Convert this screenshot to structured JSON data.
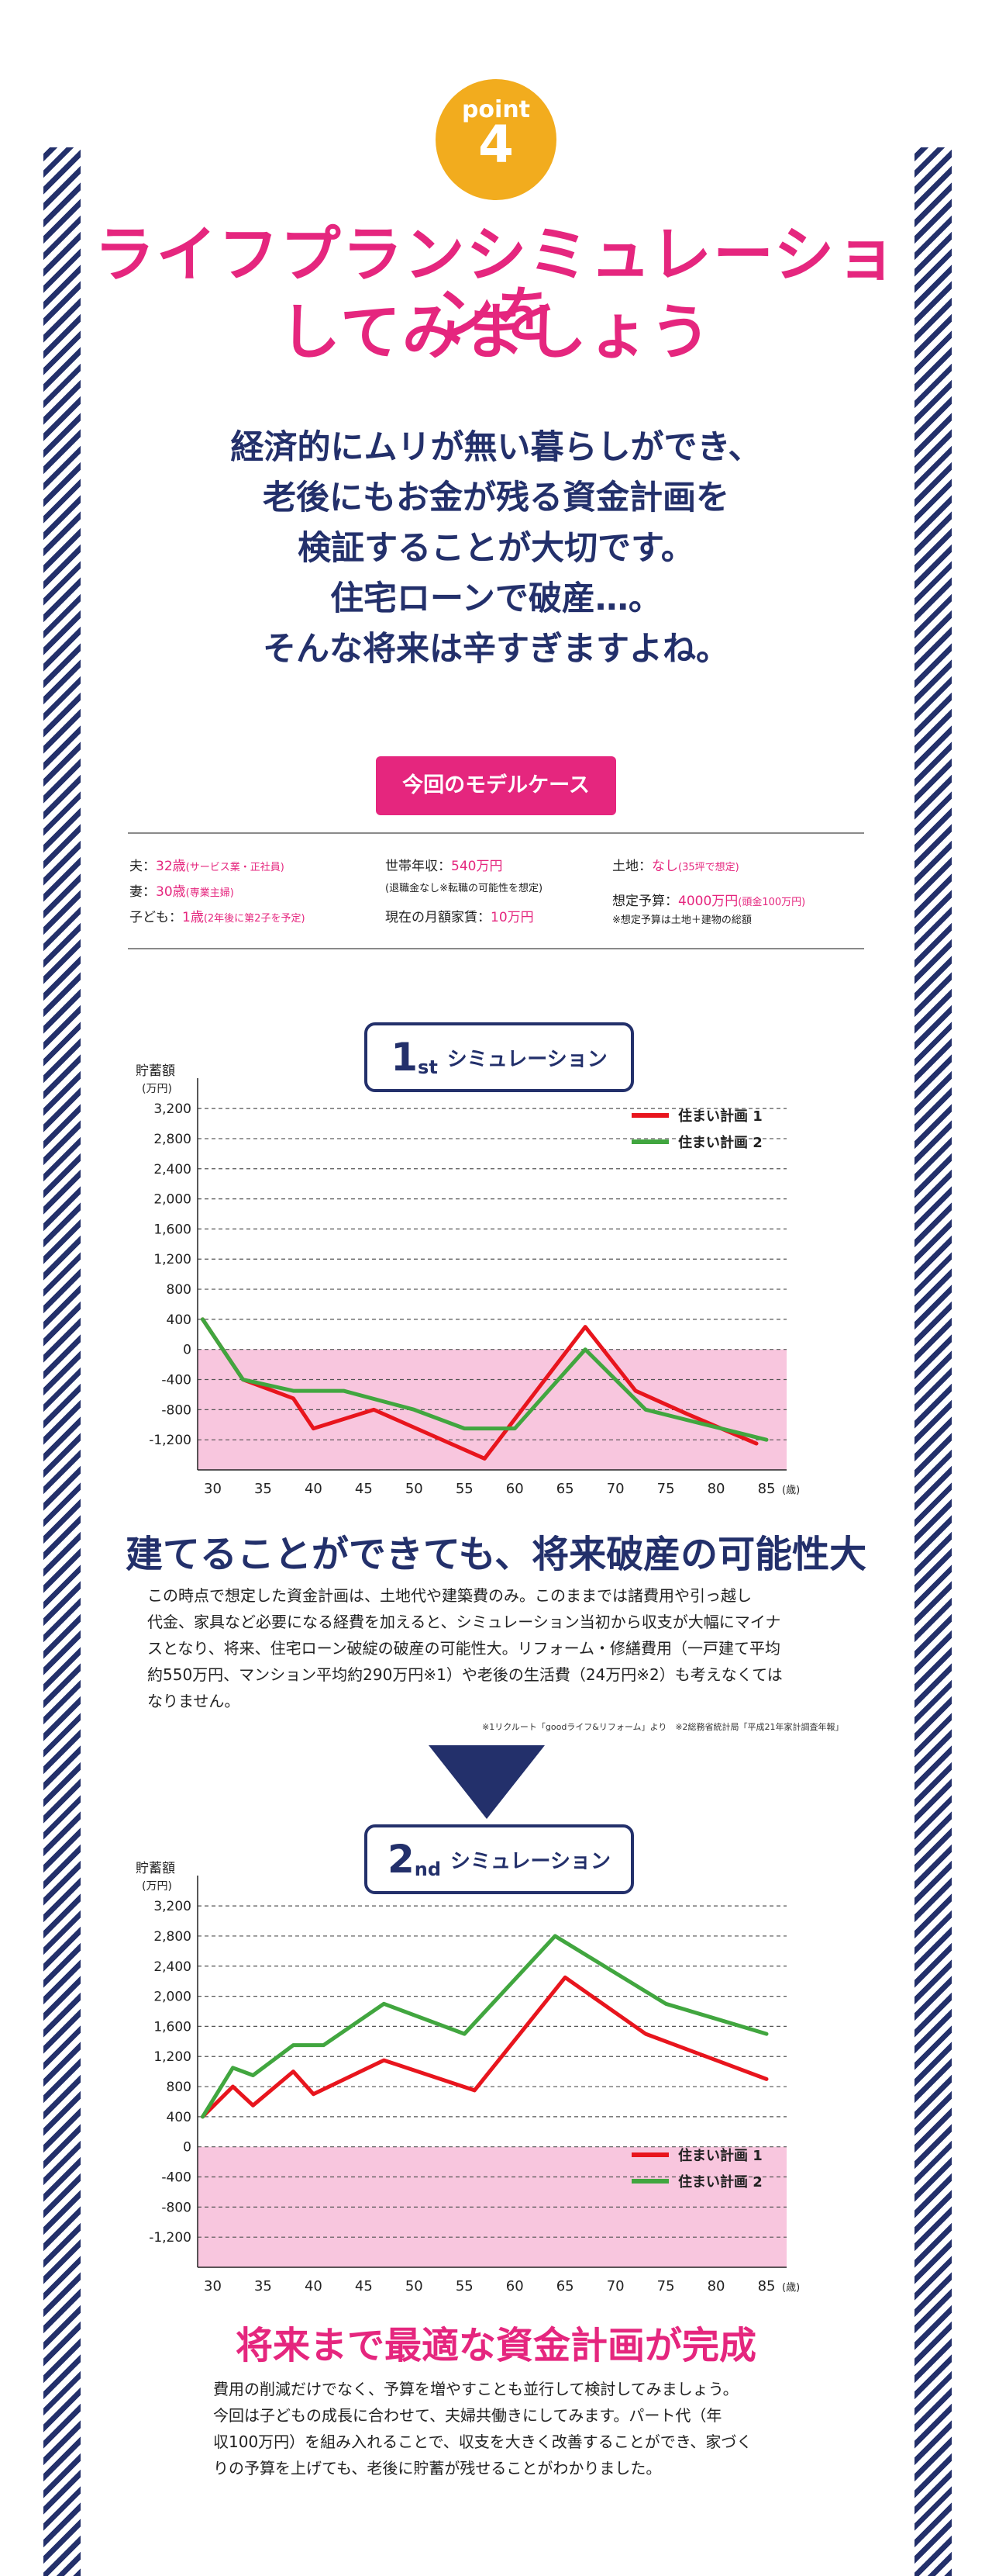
{
  "badge": {
    "word": "point",
    "number": "4"
  },
  "title": {
    "line1": "ライフプランシミュレーションを",
    "line2": "してみましょう"
  },
  "intro": [
    "経済的にムリが無い暮らしができ、",
    "老後にもお金が残る資金計画を",
    "検証することが大切です。",
    "住宅ローンで破産…。",
    "そんな将来は辛すぎますよね。"
  ],
  "model": {
    "tag": "今回のモデルケース",
    "husband_label": "夫：",
    "husband_age": "32歳",
    "husband_note": "(サービス業・正社員)",
    "wife_label": "妻：",
    "wife_age": "30歳",
    "wife_note": "(専業主婦)",
    "child_label": "子ども：",
    "child_age": "1歳",
    "child_note": "(2年後に第2子を予定)",
    "income_label": "世帯年収：",
    "income_value": "540万円",
    "income_note": "(退職金なし※転職の可能性を想定)",
    "rent_label": "現在の月額家賃：",
    "rent_value": "10万円",
    "land_label": "土地：",
    "land_value": "なし",
    "land_note": "(35坪で想定)",
    "budget_label": "想定予算：",
    "budget_value": "4000万円",
    "budget_note": "(頭金100万円)",
    "budget_sub": "※想定予算は土地＋建物の総額"
  },
  "sim1": {
    "num": "1",
    "sup": "st",
    "label": "シミュレーション"
  },
  "sim2": {
    "num": "2",
    "sup": "nd",
    "label": "シミュレーション"
  },
  "colors": {
    "pink": "#e5267e",
    "navy": "#23306b",
    "orange": "#f2ac1e",
    "red": "#e8151d",
    "green": "#41a63f",
    "negative_band": "#f8c6de"
  },
  "chart_data": [
    {
      "type": "line",
      "ylabel": "貯蓄額",
      "yunit": "(万円)",
      "xunit": "(歳)",
      "xticks": [
        30,
        35,
        40,
        45,
        50,
        55,
        60,
        65,
        70,
        75,
        80,
        85
      ],
      "yticks": [
        3200,
        2800,
        2400,
        2000,
        1600,
        1200,
        800,
        400,
        0,
        -400,
        -800,
        -1200
      ],
      "ytick_labels": [
        "3,200",
        "2,800",
        "2,400",
        "2,000",
        "1,600",
        "1,200",
        "800",
        "400",
        "0",
        "-400",
        "-800",
        "-1,200"
      ],
      "xlim": [
        28.5,
        87
      ],
      "ylim": [
        -1600,
        3500
      ],
      "grid": true,
      "legend": "top-right",
      "series": [
        {
          "name": "住まい計画 1",
          "color": "#e8151d",
          "x": [
            29,
            33,
            38,
            40,
            46,
            57,
            67,
            72,
            77,
            84
          ],
          "y": [
            400,
            -400,
            -650,
            -1050,
            -800,
            -1450,
            300,
            -550,
            -850,
            -1250
          ]
        },
        {
          "name": "住まい計画 2",
          "color": "#41a63f",
          "x": [
            29,
            33,
            38,
            43,
            50,
            55,
            60,
            67,
            73,
            85
          ],
          "y": [
            400,
            -400,
            -550,
            -550,
            -800,
            -1050,
            -1050,
            0,
            -800,
            -1200
          ]
        }
      ]
    },
    {
      "type": "line",
      "ylabel": "貯蓄額",
      "yunit": "(万円)",
      "xunit": "(歳)",
      "xticks": [
        30,
        35,
        40,
        45,
        50,
        55,
        60,
        65,
        70,
        75,
        80,
        85
      ],
      "yticks": [
        3200,
        2800,
        2400,
        2000,
        1600,
        1200,
        800,
        400,
        0,
        -400,
        -800,
        -1200
      ],
      "ytick_labels": [
        "3,200",
        "2,800",
        "2,400",
        "2,000",
        "1,600",
        "1,200",
        "800",
        "400",
        "0",
        "-400",
        "-800",
        "-1,200"
      ],
      "xlim": [
        28.5,
        87
      ],
      "ylim": [
        -1600,
        3500
      ],
      "grid": true,
      "legend": "bottom-right",
      "series": [
        {
          "name": "住まい計画 1",
          "color": "#e8151d",
          "x": [
            29,
            32,
            34,
            38,
            40,
            47,
            56,
            65,
            73,
            80,
            85
          ],
          "y": [
            400,
            800,
            550,
            1000,
            700,
            1150,
            750,
            2250,
            1500,
            1150,
            900
          ]
        },
        {
          "name": "住まい計画 2",
          "color": "#41a63f",
          "x": [
            29,
            32,
            34,
            38,
            41,
            47,
            55,
            64,
            75,
            80,
            85
          ],
          "y": [
            400,
            1050,
            950,
            1350,
            1350,
            1900,
            1500,
            2800,
            1900,
            1700,
            1500
          ]
        }
      ]
    }
  ],
  "section1": {
    "heading": "建てることができても、将来破産の可能性大",
    "lines": [
      "この時点で想定した資金計画は、土地代や建築費のみ。このままでは諸費用や引っ越し",
      "代金、家具など必要になる経費を加えると、シミュレーション当初から収支が大幅にマイナ",
      "スとなり、将来、住宅ローン破綻の破産の可能性大。リフォーム・修繕費用（一戸建て平均",
      "約550万円、マンション平均約290万円※1）や老後の生活費（24万円※2）も考えなくては",
      "なりません。"
    ],
    "note": "※1リクルート「goodライフ&リフォーム」より　※2総務省統計局「平成21年家計調査年報」"
  },
  "section2": {
    "heading": "将来まで最適な資金計画が完成",
    "lines": [
      "費用の削減だけでなく、予算を増やすことも並行して検討してみましょう。",
      "今回は子どもの成長に合わせて、夫婦共働きにしてみます。パート代（年",
      "収100万円）を組み入れることで、収支を大きく改善することができ、家づく",
      "りの予算を上げても、老後に貯蓄が残せることがわかりました。"
    ]
  }
}
